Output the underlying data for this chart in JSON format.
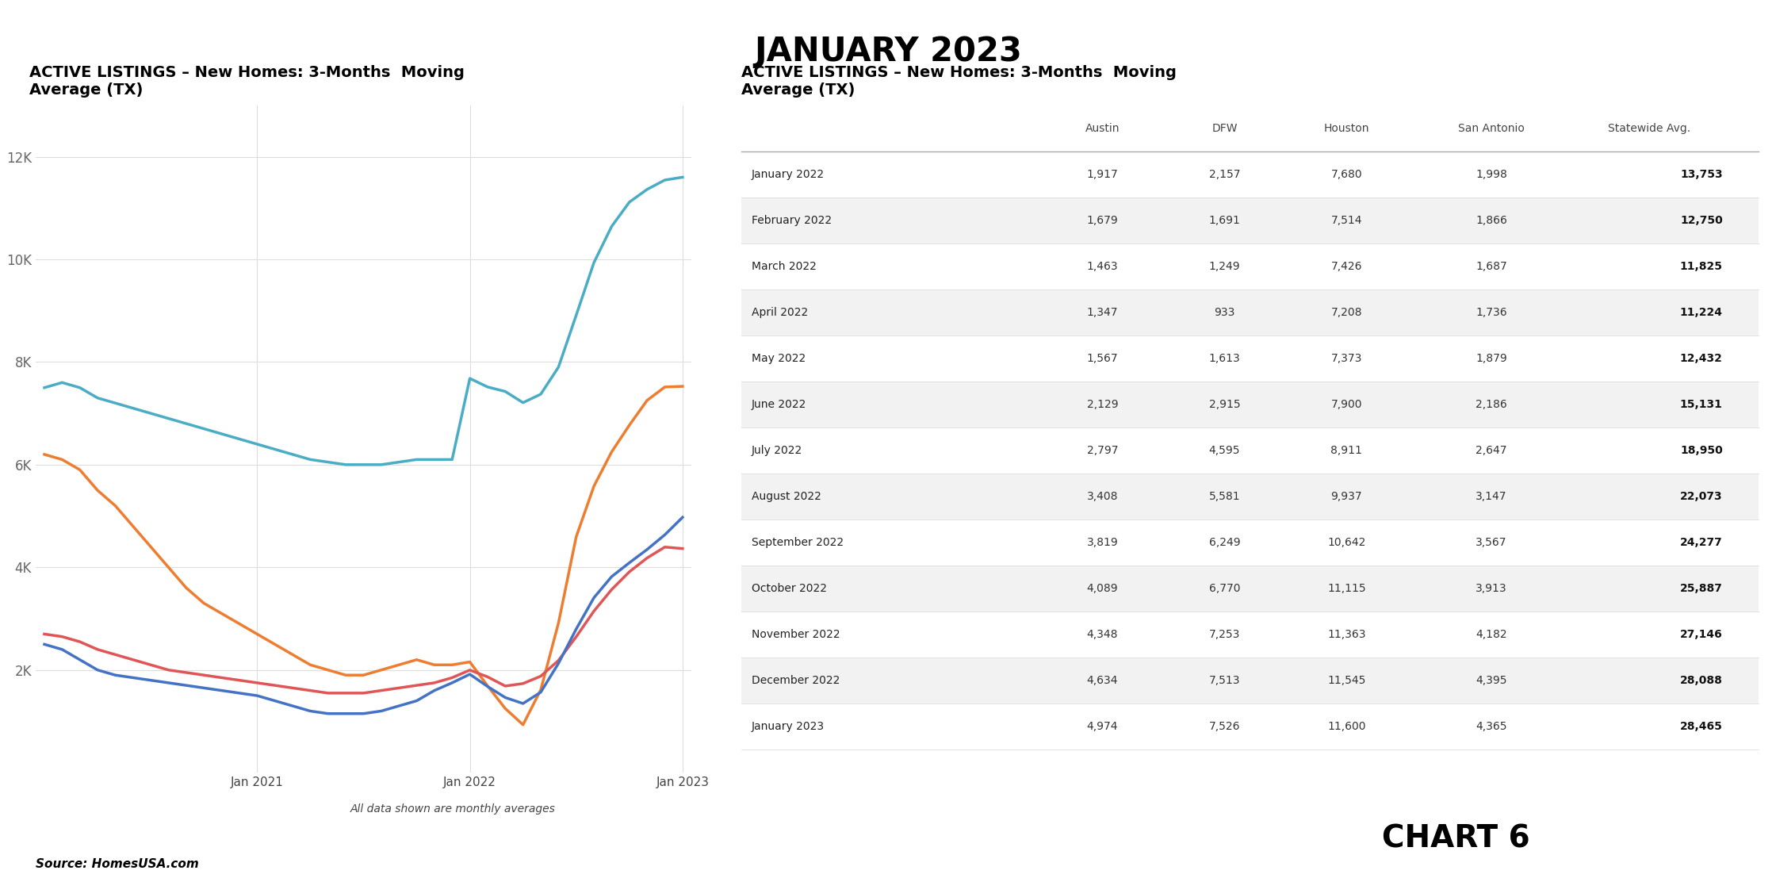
{
  "title": "JANUARY 2023",
  "chart_title": "ACTIVE LISTINGS – New Homes: 3-Months  Moving\nAverage (TX)",
  "table_title": "ACTIVE LISTINGS – New Homes: 3-Months  Moving\nAverage (TX)",
  "source": "Source: HomesUSA.com",
  "chart6_label": "CHART 6",
  "note": "All data shown are monthly averages",
  "austin": [
    2500,
    2400,
    2200,
    2000,
    1900,
    1850,
    1800,
    1750,
    1700,
    1650,
    1600,
    1550,
    1500,
    1400,
    1300,
    1200,
    1150,
    1150,
    1150,
    1200,
    1300,
    1400,
    1600,
    1750,
    1917,
    1679,
    1463,
    1347,
    1567,
    2129,
    2797,
    3408,
    3819,
    4089,
    4348,
    4634,
    4974
  ],
  "dfw": [
    6200,
    6100,
    5900,
    5500,
    5200,
    4800,
    4400,
    4000,
    3600,
    3300,
    3100,
    2900,
    2700,
    2500,
    2300,
    2100,
    2000,
    1900,
    1900,
    2000,
    2100,
    2200,
    2100,
    2100,
    2157,
    1691,
    1249,
    933,
    1613,
    2915,
    4595,
    5581,
    6249,
    6770,
    7253,
    7513,
    7526
  ],
  "houston": [
    7500,
    7600,
    7500,
    7300,
    7200,
    7100,
    7000,
    6900,
    6800,
    6700,
    6600,
    6500,
    6400,
    6300,
    6200,
    6100,
    6050,
    6000,
    6000,
    6000,
    6050,
    6100,
    6100,
    6100,
    7680,
    7514,
    7426,
    7208,
    7373,
    7900,
    8911,
    9937,
    10642,
    11115,
    11363,
    11545,
    11600
  ],
  "san_antonio": [
    2700,
    2650,
    2550,
    2400,
    2300,
    2200,
    2100,
    2000,
    1950,
    1900,
    1850,
    1800,
    1750,
    1700,
    1650,
    1600,
    1550,
    1550,
    1550,
    1600,
    1650,
    1700,
    1750,
    1850,
    1998,
    1866,
    1687,
    1736,
    1879,
    2186,
    2647,
    3147,
    3567,
    3913,
    4182,
    4395,
    4365
  ],
  "table_rows": [
    [
      "January 2022",
      1917,
      2157,
      7680,
      1998,
      13753
    ],
    [
      "February 2022",
      1679,
      1691,
      7514,
      1866,
      12750
    ],
    [
      "March 2022",
      1463,
      1249,
      7426,
      1687,
      11825
    ],
    [
      "April 2022",
      1347,
      933,
      7208,
      1736,
      11224
    ],
    [
      "May 2022",
      1567,
      1613,
      7373,
      1879,
      12432
    ],
    [
      "June 2022",
      2129,
      2915,
      7900,
      2186,
      15131
    ],
    [
      "July 2022",
      2797,
      4595,
      8911,
      2647,
      18950
    ],
    [
      "August 2022",
      3408,
      5581,
      9937,
      3147,
      22073
    ],
    [
      "September 2022",
      3819,
      6249,
      10642,
      3567,
      24277
    ],
    [
      "October 2022",
      4089,
      6770,
      11115,
      3913,
      25887
    ],
    [
      "November 2022",
      4348,
      7253,
      11363,
      4182,
      27146
    ],
    [
      "December 2022",
      4634,
      7513,
      11545,
      4395,
      28088
    ],
    [
      "January 2023",
      4974,
      7526,
      11600,
      4365,
      28465
    ]
  ],
  "table_headers": [
    "",
    "Austin",
    "DFW",
    "Houston",
    "San Antonio",
    "Statewide Avg."
  ],
  "colors": {
    "austin": "#4472C4",
    "dfw": "#ED7D31",
    "houston": "#4BACC6",
    "san_antonio": "#E05555",
    "background": "#FFFFFF",
    "grid": "#DDDDDD",
    "text": "#000000"
  },
  "yticks": [
    0,
    2000,
    4000,
    6000,
    8000,
    10000,
    12000
  ],
  "ytick_labels": [
    "",
    "2K",
    "4K",
    "6K",
    "8K",
    "10K",
    "12K"
  ]
}
